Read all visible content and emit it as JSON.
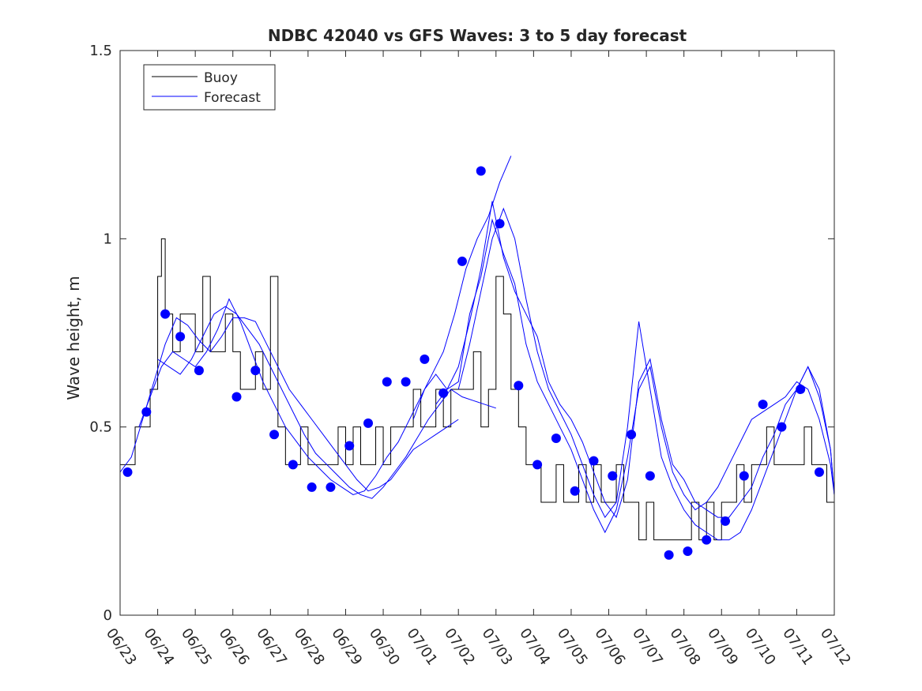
{
  "chart_data": {
    "type": "line",
    "title": "NDBC 42040 vs GFS Waves: 3 to 5 day forecast",
    "xlabel": "",
    "ylabel": "Wave height, m",
    "x_unit": "date (2016, day of June/July)",
    "xlim": [
      "06/23 00:00",
      "07/12 00:00"
    ],
    "ylim": [
      0,
      1.5
    ],
    "yticks": [
      0,
      0.5,
      1,
      1.5
    ],
    "ytick_labels": [
      "0",
      "0.5",
      "1",
      "1.5"
    ],
    "xtick_labels": [
      "06/23",
      "06/24",
      "06/25",
      "06/26",
      "06/27",
      "06/28",
      "06/29",
      "06/30",
      "07/01",
      "07/02",
      "07/03",
      "07/04",
      "07/05",
      "07/06",
      "07/07",
      "07/08",
      "07/09",
      "07/10",
      "07/11",
      "07/12"
    ],
    "grid": false,
    "legend_position": "top-left",
    "legend": [
      "Buoy",
      "Forecast"
    ],
    "colors": {
      "buoy": "#000000",
      "forecast": "#0000ff"
    },
    "series": [
      {
        "name": "Buoy",
        "style": "step-line",
        "x_days": [
          0.0,
          0.2,
          0.4,
          0.6,
          0.8,
          1.0,
          1.1,
          1.2,
          1.4,
          1.6,
          1.8,
          2.0,
          2.2,
          2.4,
          2.6,
          2.8,
          3.0,
          3.2,
          3.4,
          3.6,
          3.8,
          4.0,
          4.2,
          4.4,
          4.6,
          4.8,
          5.0,
          5.2,
          5.4,
          5.6,
          5.8,
          6.0,
          6.2,
          6.4,
          6.6,
          6.8,
          7.0,
          7.2,
          7.4,
          7.6,
          7.8,
          8.0,
          8.2,
          8.4,
          8.6,
          8.8,
          9.0,
          9.2,
          9.4,
          9.6,
          9.8,
          10.0,
          10.2,
          10.4,
          10.6,
          10.8,
          11.0,
          11.2,
          11.4,
          11.6,
          11.8,
          12.0,
          12.2,
          12.4,
          12.6,
          12.8,
          13.0,
          13.2,
          13.4,
          13.6,
          13.8,
          14.0,
          14.2,
          14.4,
          14.6,
          14.8,
          15.0,
          15.2,
          15.4,
          15.6,
          15.8,
          16.0,
          16.2,
          16.4,
          16.6,
          16.8,
          17.0,
          17.2,
          17.4,
          17.6,
          17.8,
          18.0,
          18.2,
          18.4,
          18.6,
          18.8,
          19.0
        ],
        "y": [
          0.4,
          0.4,
          0.5,
          0.5,
          0.6,
          0.9,
          1.0,
          0.8,
          0.7,
          0.8,
          0.8,
          0.7,
          0.9,
          0.7,
          0.7,
          0.8,
          0.7,
          0.6,
          0.6,
          0.7,
          0.6,
          0.9,
          0.5,
          0.4,
          0.4,
          0.5,
          0.4,
          0.4,
          0.4,
          0.4,
          0.5,
          0.4,
          0.5,
          0.4,
          0.4,
          0.5,
          0.4,
          0.5,
          0.5,
          0.5,
          0.6,
          0.5,
          0.5,
          0.6,
          0.5,
          0.6,
          0.6,
          0.6,
          0.7,
          0.5,
          0.6,
          0.9,
          0.8,
          0.6,
          0.5,
          0.4,
          0.4,
          0.3,
          0.3,
          0.4,
          0.3,
          0.3,
          0.4,
          0.3,
          0.4,
          0.3,
          0.3,
          0.4,
          0.3,
          0.3,
          0.2,
          0.3,
          0.2,
          0.2,
          0.2,
          0.2,
          0.2,
          0.3,
          0.2,
          0.3,
          0.2,
          0.3,
          0.3,
          0.4,
          0.3,
          0.4,
          0.4,
          0.5,
          0.4,
          0.4,
          0.4,
          0.4,
          0.5,
          0.4,
          0.4,
          0.3,
          0.3
        ]
      },
      {
        "name": "Forecast",
        "style": "line",
        "runs": [
          {
            "x_days": [
              0.0,
              0.3,
              0.6,
              0.9,
              1.2,
              1.5,
              1.8,
              2.1,
              2.4,
              2.7,
              3.0,
              3.3,
              3.6,
              3.9,
              4.2,
              4.5,
              4.8,
              5.1,
              5.4,
              5.7,
              6.0,
              6.3,
              6.6,
              6.9,
              7.2,
              7.5,
              7.8,
              8.1,
              8.4,
              8.7,
              9.0
            ],
            "y": [
              0.38,
              0.42,
              0.52,
              0.62,
              0.72,
              0.79,
              0.77,
              0.73,
              0.7,
              0.74,
              0.79,
              0.79,
              0.78,
              0.72,
              0.66,
              0.6,
              0.56,
              0.52,
              0.48,
              0.44,
              0.4,
              0.36,
              0.33,
              0.34,
              0.36,
              0.4,
              0.44,
              0.46,
              0.48,
              0.5,
              0.52
            ]
          },
          {
            "x_days": [
              1.0,
              1.3,
              1.6,
              1.9,
              2.2,
              2.5,
              2.8,
              3.1,
              3.4,
              3.7,
              4.0,
              4.3,
              4.6,
              4.9,
              5.2,
              5.5,
              5.8,
              6.1,
              6.4,
              6.7,
              7.0,
              7.3,
              7.6,
              7.9,
              8.2,
              8.5,
              8.8,
              9.1,
              9.4,
              9.7,
              10.0
            ],
            "y": [
              0.68,
              0.66,
              0.64,
              0.68,
              0.74,
              0.8,
              0.82,
              0.8,
              0.76,
              0.72,
              0.66,
              0.6,
              0.54,
              0.48,
              0.43,
              0.4,
              0.37,
              0.34,
              0.32,
              0.31,
              0.34,
              0.38,
              0.42,
              0.47,
              0.52,
              0.56,
              0.6,
              0.58,
              0.57,
              0.56,
              0.55
            ]
          },
          {
            "x_days": [
              0.5,
              0.8,
              1.1,
              1.4,
              1.7,
              2.0,
              2.3,
              2.6,
              2.9,
              3.2,
              3.5,
              3.8,
              4.1,
              4.4,
              4.7,
              5.0,
              5.3,
              5.6,
              5.9,
              6.2,
              6.5,
              6.8,
              7.1,
              7.4,
              7.7,
              8.0,
              8.3,
              8.6,
              8.9,
              9.2,
              9.5,
              9.8,
              10.1,
              10.4
            ],
            "y": [
              0.5,
              0.58,
              0.66,
              0.7,
              0.68,
              0.66,
              0.7,
              0.76,
              0.84,
              0.78,
              0.7,
              0.62,
              0.56,
              0.5,
              0.46,
              0.42,
              0.39,
              0.36,
              0.34,
              0.32,
              0.33,
              0.37,
              0.42,
              0.46,
              0.52,
              0.58,
              0.64,
              0.7,
              0.8,
              0.92,
              1.0,
              1.06,
              1.15,
              1.22
            ]
          },
          {
            "x_days": [
              9.0,
              9.3,
              9.6,
              9.9,
              10.2,
              10.5,
              10.8,
              11.1,
              11.4,
              11.7,
              12.0,
              12.3,
              12.6,
              12.9,
              13.2,
              13.5,
              13.8,
              14.1,
              14.4,
              14.7,
              15.0,
              15.3,
              15.6,
              15.9,
              16.2,
              16.5,
              16.8,
              17.1,
              17.4,
              17.7,
              18.0,
              18.3,
              18.6,
              18.9,
              19.0
            ],
            "y": [
              0.6,
              0.72,
              0.86,
              1.0,
              1.08,
              1.0,
              0.84,
              0.7,
              0.6,
              0.54,
              0.48,
              0.4,
              0.32,
              0.26,
              0.3,
              0.5,
              0.78,
              0.6,
              0.42,
              0.34,
              0.28,
              0.24,
              0.22,
              0.2,
              0.2,
              0.22,
              0.28,
              0.36,
              0.44,
              0.52,
              0.6,
              0.66,
              0.6,
              0.44,
              0.32
            ]
          },
          {
            "x_days": [
              8.4,
              8.7,
              9.0,
              9.3,
              9.6,
              9.9,
              10.2,
              10.5,
              10.8,
              11.1,
              11.4,
              11.7,
              12.0,
              12.3,
              12.6,
              12.9,
              13.2,
              13.5,
              13.8,
              14.1,
              14.4,
              14.7,
              15.0,
              15.3,
              15.6,
              15.9,
              16.2,
              16.5,
              16.8,
              17.1,
              17.4,
              17.7,
              18.0,
              18.3,
              18.6,
              18.9,
              19.0
            ],
            "y": [
              0.56,
              0.6,
              0.66,
              0.78,
              0.92,
              1.1,
              0.95,
              0.86,
              0.8,
              0.74,
              0.62,
              0.56,
              0.52,
              0.46,
              0.38,
              0.3,
              0.26,
              0.36,
              0.62,
              0.68,
              0.52,
              0.4,
              0.36,
              0.3,
              0.28,
              0.26,
              0.26,
              0.3,
              0.34,
              0.42,
              0.48,
              0.56,
              0.6,
              0.66,
              0.58,
              0.44,
              0.32
            ]
          },
          {
            "x_days": [
              7.8,
              8.1,
              8.4,
              8.7,
              9.0,
              9.3,
              9.6,
              9.9,
              10.2,
              10.5,
              10.8,
              11.1,
              11.4,
              11.7,
              12.0,
              12.3,
              12.6,
              12.9,
              13.2,
              13.5,
              13.8,
              14.1,
              14.4,
              14.7,
              15.0,
              15.3,
              15.6,
              15.9,
              16.2,
              16.5,
              16.8,
              17.1,
              17.4,
              17.7,
              18.0,
              18.3,
              18.6,
              18.9,
              19.0
            ],
            "y": [
              0.52,
              0.6,
              0.64,
              0.6,
              0.62,
              0.8,
              0.9,
              1.05,
              0.96,
              0.88,
              0.72,
              0.62,
              0.56,
              0.5,
              0.44,
              0.36,
              0.28,
              0.22,
              0.28,
              0.42,
              0.6,
              0.66,
              0.5,
              0.38,
              0.32,
              0.28,
              0.3,
              0.34,
              0.4,
              0.46,
              0.52,
              0.54,
              0.56,
              0.58,
              0.62,
              0.6,
              0.52,
              0.4,
              0.32
            ]
          }
        ],
        "markers": {
          "x_days": [
            0.2,
            0.7,
            1.2,
            1.6,
            2.1,
            3.1,
            3.6,
            4.1,
            4.6,
            5.1,
            5.6,
            6.1,
            6.6,
            7.1,
            7.6,
            8.1,
            8.6,
            9.1,
            9.6,
            10.1,
            10.6,
            11.1,
            11.6,
            12.1,
            12.6,
            13.1,
            13.6,
            14.1,
            14.6,
            15.1,
            15.6,
            16.1,
            16.6,
            17.1,
            17.6,
            18.1,
            18.6
          ],
          "y": [
            0.38,
            0.54,
            0.8,
            0.74,
            0.65,
            0.58,
            0.65,
            0.48,
            0.4,
            0.34,
            0.34,
            0.45,
            0.51,
            0.62,
            0.62,
            0.68,
            0.59,
            0.94,
            1.18,
            1.04,
            0.61,
            0.4,
            0.47,
            0.33,
            0.41,
            0.37,
            0.48,
            0.37,
            0.16,
            0.17,
            0.2,
            0.25,
            0.37,
            0.56,
            0.5,
            0.6,
            0.38
          ]
        }
      }
    ]
  }
}
